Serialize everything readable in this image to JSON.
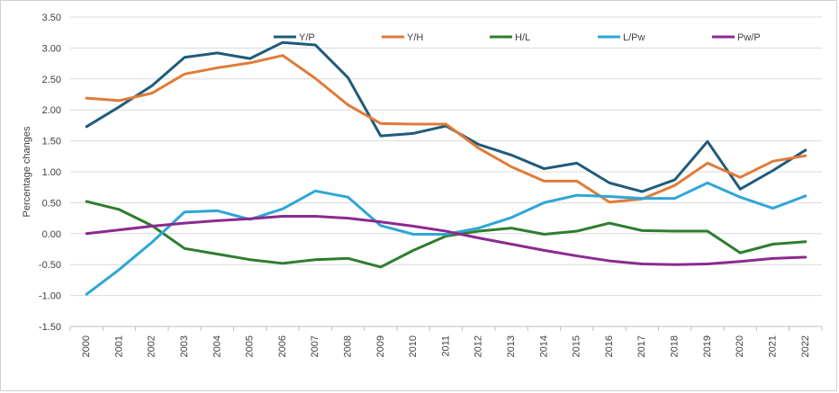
{
  "chart_data": {
    "type": "line",
    "title": "",
    "xlabel": "",
    "ylabel": "Percentage changes",
    "ylim": [
      -1.5,
      3.5
    ],
    "y_ticks": [
      3.5,
      3.0,
      2.5,
      2.0,
      1.5,
      1.0,
      0.5,
      0.0,
      -0.5,
      -1.0,
      -1.5
    ],
    "y_tick_labels": [
      "3.50",
      "3.00",
      "2.50",
      "2.00",
      "1.50",
      "1.00",
      "0.50",
      "0.00",
      "-0.50",
      "-1.00",
      "-1.50"
    ],
    "grid": "horizontal",
    "legend_position": "top",
    "x": [
      "2000",
      "2001",
      "2002",
      "2003",
      "2004",
      "2005",
      "2006",
      "2007",
      "2008",
      "2009",
      "2010",
      "2011",
      "2012",
      "2013",
      "2014",
      "2015",
      "2016",
      "2017",
      "2018",
      "2019",
      "2020",
      "2021",
      "2022"
    ],
    "series": [
      {
        "name": "Y/P",
        "color": "#1f5b7a",
        "values": [
          1.73,
          2.05,
          2.39,
          2.85,
          2.92,
          2.83,
          3.09,
          3.05,
          2.52,
          1.58,
          1.62,
          1.74,
          1.44,
          1.27,
          1.05,
          1.14,
          0.82,
          0.68,
          0.87,
          1.49,
          0.72,
          1.02,
          1.35
        ]
      },
      {
        "name": "Y/H",
        "color": "#e07b39",
        "values": [
          2.19,
          2.15,
          2.27,
          2.58,
          2.68,
          2.76,
          2.88,
          2.51,
          2.08,
          1.78,
          1.77,
          1.77,
          1.38,
          1.08,
          0.85,
          0.85,
          0.51,
          0.56,
          0.78,
          1.14,
          0.91,
          1.17,
          1.26
        ]
      },
      {
        "name": "H/L",
        "color": "#2e7d2e",
        "values": [
          0.52,
          0.39,
          0.13,
          -0.24,
          -0.33,
          -0.42,
          -0.48,
          -0.42,
          -0.4,
          -0.54,
          -0.27,
          -0.04,
          0.04,
          0.09,
          -0.01,
          0.04,
          0.17,
          0.05,
          0.04,
          0.04,
          -0.31,
          -0.17,
          -0.13
        ]
      },
      {
        "name": "L/Pw",
        "color": "#2ea6d6",
        "values": [
          -0.98,
          -0.58,
          -0.14,
          0.35,
          0.37,
          0.23,
          0.4,
          0.69,
          0.59,
          0.13,
          -0.01,
          -0.01,
          0.09,
          0.26,
          0.5,
          0.62,
          0.6,
          0.57,
          0.57,
          0.82,
          0.59,
          0.41,
          0.61
        ]
      },
      {
        "name": "Pw/P",
        "color": "#8b2a8f",
        "values": [
          0.0,
          0.06,
          0.12,
          0.17,
          0.21,
          0.24,
          0.28,
          0.28,
          0.25,
          0.19,
          0.12,
          0.04,
          -0.07,
          -0.17,
          -0.27,
          -0.36,
          -0.44,
          -0.49,
          -0.5,
          -0.49,
          -0.45,
          -0.4,
          -0.38
        ]
      }
    ]
  }
}
